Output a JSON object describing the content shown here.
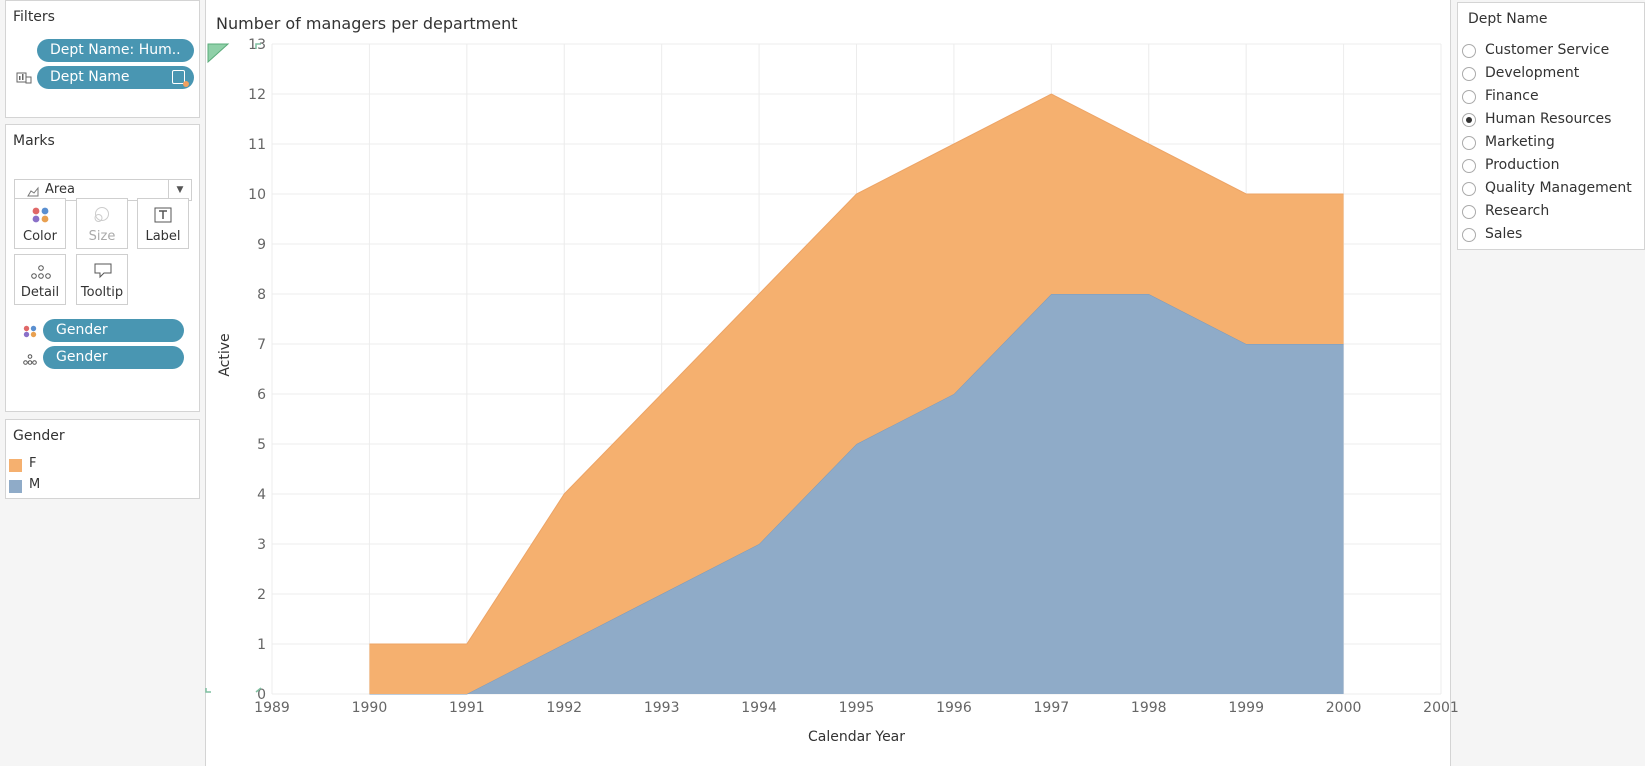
{
  "filters": {
    "title": "Filters",
    "pills": [
      {
        "label": "Dept Name: Hum.."
      },
      {
        "label": "Dept Name"
      }
    ]
  },
  "marks": {
    "title": "Marks",
    "mark_type": "Area",
    "buttons": {
      "color": "Color",
      "size": "Size",
      "label": "Label",
      "detail": "Detail",
      "tooltip": "Tooltip"
    },
    "fields": [
      {
        "label": "Gender",
        "encoding": "color"
      },
      {
        "label": "Gender",
        "encoding": "detail"
      }
    ]
  },
  "legend": {
    "title": "Gender",
    "items": [
      {
        "label": "F",
        "color": "#f5b06f"
      },
      {
        "label": "M",
        "color": "#8fabc8"
      }
    ]
  },
  "chart_title": "Number of managers per department",
  "chart_data": {
    "type": "area",
    "stacked": true,
    "title": "Number of managers per department",
    "xlabel": "Calendar Year",
    "ylabel": "Active",
    "xlim": [
      1989,
      2001
    ],
    "ylim": [
      0,
      13
    ],
    "x_ticks": [
      1989,
      1990,
      1991,
      1992,
      1993,
      1994,
      1995,
      1996,
      1997,
      1998,
      1999,
      2000,
      2001
    ],
    "y_ticks": [
      0,
      1,
      2,
      3,
      4,
      5,
      6,
      7,
      8,
      9,
      10,
      11,
      12,
      13
    ],
    "x": [
      1990,
      1991,
      1992,
      1993,
      1994,
      1995,
      1996,
      1997,
      1998,
      1999,
      2000
    ],
    "series": [
      {
        "name": "M",
        "color": "#8fabc8",
        "values": [
          0,
          0,
          1,
          2,
          3,
          5,
          6,
          8,
          8,
          7,
          7
        ]
      },
      {
        "name": "F",
        "color": "#f5b06f",
        "values": [
          1,
          1,
          3,
          4,
          5,
          5,
          5,
          4,
          3,
          3,
          3
        ]
      }
    ],
    "grid": true
  },
  "dept_filter": {
    "title": "Dept Name",
    "options": [
      {
        "label": "Customer Service",
        "selected": false
      },
      {
        "label": "Development",
        "selected": false
      },
      {
        "label": "Finance",
        "selected": false
      },
      {
        "label": "Human Resources",
        "selected": true
      },
      {
        "label": "Marketing",
        "selected": false
      },
      {
        "label": "Production",
        "selected": false
      },
      {
        "label": "Quality Management",
        "selected": false
      },
      {
        "label": "Research",
        "selected": false
      },
      {
        "label": "Sales",
        "selected": false
      }
    ]
  }
}
